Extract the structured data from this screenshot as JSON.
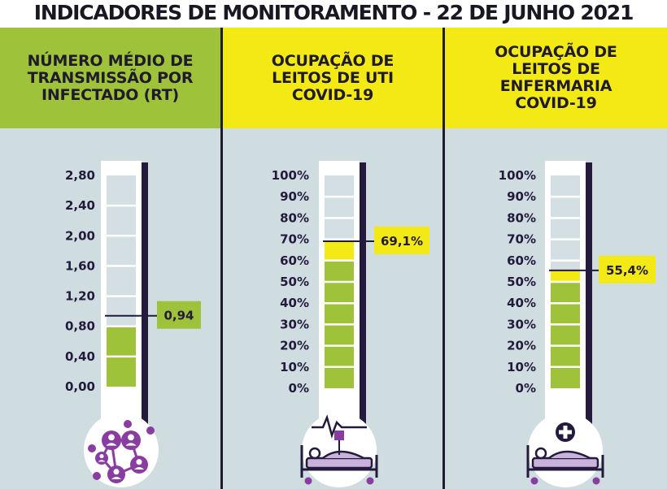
{
  "title": "INDICADORES DE MONITORAMENTO - 22 DE JUNHO 2021",
  "colors": {
    "green": "#9ec23a",
    "yellow": "#f3ea15",
    "navy": "#231a3c",
    "purple": "#8a3da0",
    "background": "#cfdde1",
    "tube_empty": "#d3dfe3"
  },
  "chart_data": [
    {
      "type": "thermometer",
      "title": "NÚMERO MÉDIO DE TRANSMISSÃO POR INFECTADO (RT)",
      "ticks": [
        "2,80",
        "2,40",
        "2,00",
        "1,60",
        "1,20",
        "0,80",
        "0,40",
        "0,00"
      ],
      "ylim": [
        0,
        2.8
      ],
      "value": 0.94,
      "value_label": "0,94",
      "marker_color": "#9ec23a",
      "icon": "network-people-icon"
    },
    {
      "type": "thermometer",
      "title": "OCUPAÇÃO DE LEITOS DE UTI COVID-19",
      "ticks": [
        "100%",
        "90%",
        "80%",
        "70%",
        "60%",
        "50%",
        "40%",
        "30%",
        "20%",
        "10%",
        "0%"
      ],
      "ylim": [
        0,
        100
      ],
      "value": 69.1,
      "value_label": "69,1%",
      "marker_color": "#f3ea15",
      "icon": "icu-bed-monitor-icon"
    },
    {
      "type": "thermometer",
      "title": "OCUPAÇÃO DE LEITOS DE ENFERMARIA COVID-19",
      "ticks": [
        "100%",
        "90%",
        "80%",
        "70%",
        "60%",
        "50%",
        "40%",
        "30%",
        "20%",
        "10%",
        "0%"
      ],
      "ylim": [
        0,
        100
      ],
      "value": 55.4,
      "value_label": "55,4%",
      "marker_color": "#f3ea15",
      "icon": "hospital-bed-cross-icon"
    }
  ]
}
